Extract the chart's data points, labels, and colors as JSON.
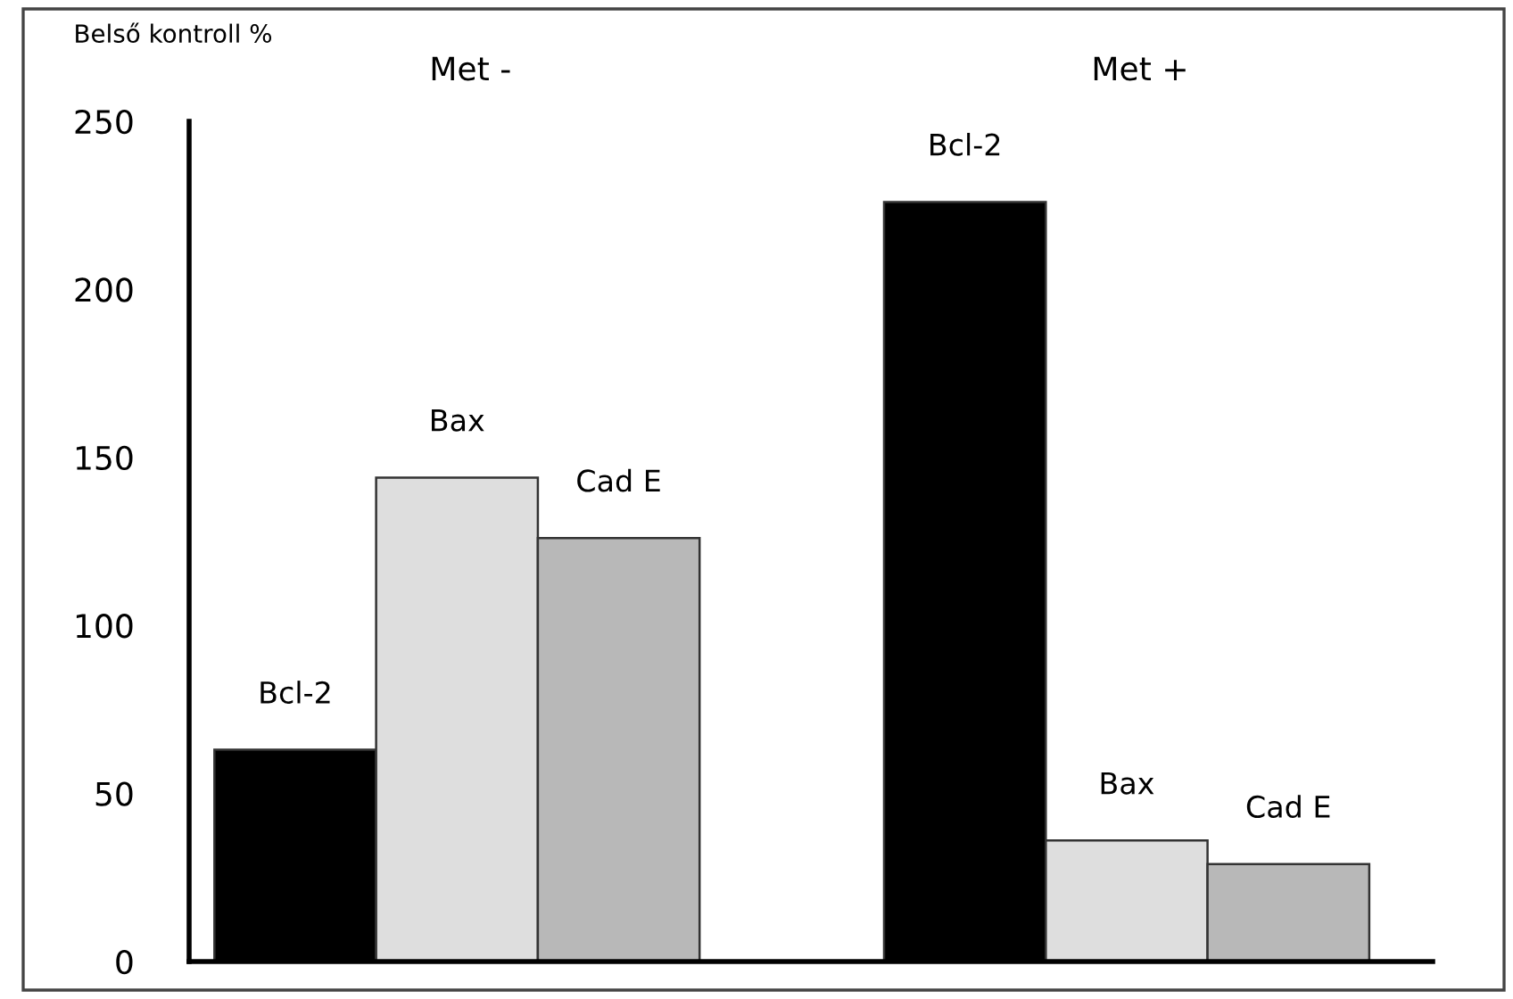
{
  "chart_data": {
    "type": "bar",
    "ylabel": "Belső kontroll %",
    "categories": [
      "Met -",
      "Met +"
    ],
    "series": [
      {
        "name": "Bcl-2",
        "color": "#000000",
        "values": [
          63,
          226
        ]
      },
      {
        "name": "Bax",
        "color": "#dedede",
        "values": [
          144,
          36
        ]
      },
      {
        "name": "Cad E",
        "color": "#b8b8b8",
        "values": [
          126,
          29
        ]
      }
    ],
    "ylim": [
      0,
      250
    ],
    "yticks": [
      0,
      50,
      100,
      150,
      200,
      250
    ],
    "grid": false,
    "legend": false
  }
}
